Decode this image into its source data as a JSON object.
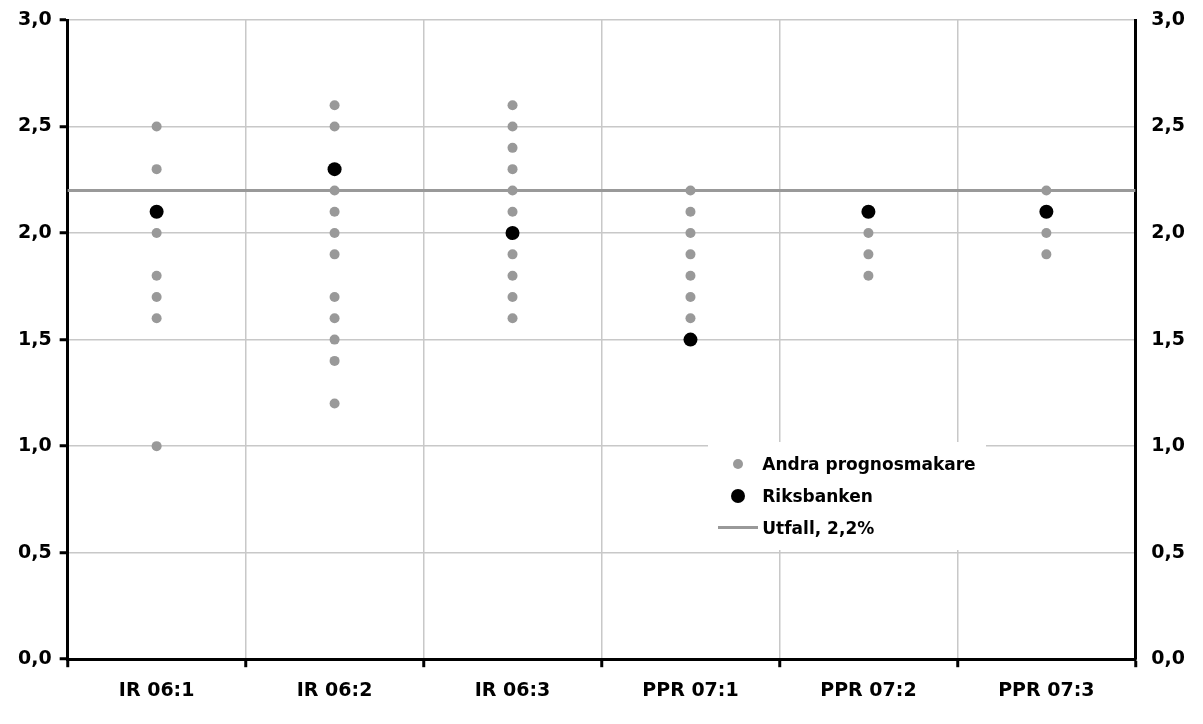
{
  "chart_data": {
    "type": "scatter",
    "categories": [
      "IR 06:1",
      "IR 06:2",
      "IR 06:3",
      "PPR 07:1",
      "PPR 07:2",
      "PPR 07:3"
    ],
    "series": [
      {
        "name": "Andra prognosmakare",
        "color": "#999999",
        "x": [
          "IR 06:1",
          "IR 06:1",
          "IR 06:1",
          "IR 06:1",
          "IR 06:1",
          "IR 06:1",
          "IR 06:1",
          "IR 06:2",
          "IR 06:2",
          "IR 06:2",
          "IR 06:2",
          "IR 06:2",
          "IR 06:2",
          "IR 06:2",
          "IR 06:2",
          "IR 06:2",
          "IR 06:2",
          "IR 06:2",
          "IR 06:3",
          "IR 06:3",
          "IR 06:3",
          "IR 06:3",
          "IR 06:3",
          "IR 06:3",
          "IR 06:3",
          "IR 06:3",
          "IR 06:3",
          "IR 06:3",
          "PPR 07:1",
          "PPR 07:1",
          "PPR 07:1",
          "PPR 07:1",
          "PPR 07:1",
          "PPR 07:1",
          "PPR 07:1",
          "PPR 07:2",
          "PPR 07:2",
          "PPR 07:2",
          "PPR 07:3",
          "PPR 07:3",
          "PPR 07:3"
        ],
        "values": [
          2.5,
          2.3,
          2.0,
          1.8,
          1.7,
          1.6,
          1.0,
          2.6,
          2.5,
          2.2,
          2.1,
          2.0,
          1.9,
          1.7,
          1.6,
          1.5,
          1.4,
          1.2,
          2.6,
          2.5,
          2.4,
          2.3,
          2.2,
          2.1,
          1.9,
          1.8,
          1.7,
          1.6,
          2.2,
          2.1,
          2.0,
          1.9,
          1.8,
          1.7,
          1.6,
          2.0,
          1.9,
          1.8,
          2.2,
          2.0,
          1.9
        ]
      },
      {
        "name": "Riksbanken",
        "color": "#000000",
        "x": [
          "IR 06:1",
          "IR 06:2",
          "IR 06:3",
          "PPR 07:1",
          "PPR 07:2",
          "PPR 07:3"
        ],
        "values": [
          2.1,
          2.3,
          2.0,
          1.5,
          2.1,
          2.1
        ]
      }
    ],
    "ref_lines": [
      {
        "axis": "y",
        "value": 2.2,
        "label": "Utfall, 2,2%",
        "color": "#999999"
      }
    ],
    "ylim": [
      0,
      3
    ],
    "yticks": [
      {
        "value": 0,
        "label": "0,0"
      },
      {
        "value": 0.5,
        "label": "0,5"
      },
      {
        "value": 1,
        "label": "1,0"
      },
      {
        "value": 1.5,
        "label": "1,5"
      },
      {
        "value": 2,
        "label": "2,0"
      },
      {
        "value": 2.5,
        "label": "2,5"
      },
      {
        "value": 3,
        "label": "3,0"
      }
    ],
    "y2lim": [
      0,
      3
    ],
    "y2ticks": [
      {
        "value": 0,
        "label": "0,0"
      },
      {
        "value": 0.5,
        "label": "0,5"
      },
      {
        "value": 1,
        "label": "1,0"
      },
      {
        "value": 1.5,
        "label": "1,5"
      },
      {
        "value": 2,
        "label": "2,0"
      },
      {
        "value": 2.5,
        "label": "2,5"
      },
      {
        "value": 3,
        "label": "3,0"
      }
    ],
    "grid": true,
    "legend": "bottom right",
    "marker": "circle"
  }
}
